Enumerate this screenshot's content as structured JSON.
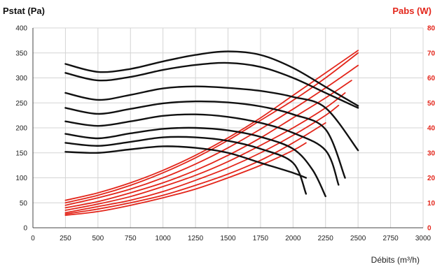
{
  "chart_data": {
    "type": "line",
    "title_left": "Pstat (Pa)",
    "title_right": "Pabs (W)",
    "xlabel": "Débits (m³/h)",
    "xlim": [
      0,
      3000
    ],
    "ylim_left": [
      0,
      400
    ],
    "ylim_right": [
      0,
      80
    ],
    "x_ticks": [
      "0",
      "250",
      "500",
      "750",
      "1000",
      "1250",
      "1500",
      "1750",
      "2000",
      "2250",
      "2500",
      "2750",
      "3000"
    ],
    "y_left_ticks": [
      "0",
      "50",
      "100",
      "150",
      "200",
      "250",
      "300",
      "350",
      "400"
    ],
    "y_right_ticks": [
      "0",
      "10",
      "20",
      "30",
      "40",
      "50",
      "60",
      "70",
      "80"
    ],
    "grid": true,
    "colors": {
      "pressure": "#111111",
      "power": "#e3261b",
      "grid": "#d4d4d4"
    },
    "pressure_curves": [
      {
        "x": [
          250,
          500,
          750,
          1000,
          1250,
          1500,
          1750,
          2000,
          2250,
          2500
        ],
        "y": [
          328,
          312,
          318,
          333,
          346,
          353,
          346,
          320,
          282,
          244
        ]
      },
      {
        "x": [
          250,
          500,
          750,
          1000,
          1250,
          1500,
          1750,
          2000,
          2250,
          2500
        ],
        "y": [
          310,
          295,
          302,
          316,
          326,
          330,
          322,
          300,
          270,
          240
        ]
      },
      {
        "x": [
          250,
          500,
          750,
          1000,
          1250,
          1500,
          1750,
          2000,
          2250,
          2500
        ],
        "y": [
          270,
          256,
          266,
          279,
          283,
          280,
          274,
          262,
          240,
          155
        ]
      },
      {
        "x": [
          250,
          500,
          750,
          1000,
          1250,
          1500,
          1750,
          2000,
          2250,
          2400
        ],
        "y": [
          240,
          228,
          238,
          249,
          253,
          251,
          243,
          227,
          197,
          100
        ]
      },
      {
        "x": [
          250,
          500,
          750,
          1000,
          1250,
          1500,
          1750,
          2000,
          2250,
          2350
        ],
        "y": [
          213,
          204,
          213,
          224,
          227,
          222,
          210,
          190,
          155,
          86
        ]
      },
      {
        "x": [
          250,
          500,
          750,
          1000,
          1250,
          1500,
          1750,
          2000,
          2150,
          2250
        ],
        "y": [
          188,
          179,
          189,
          198,
          200,
          195,
          182,
          158,
          116,
          63
        ]
      },
      {
        "x": [
          250,
          500,
          750,
          1000,
          1250,
          1500,
          1750,
          2000,
          2100
        ],
        "y": [
          170,
          164,
          172,
          181,
          181,
          174,
          158,
          130,
          68
        ]
      },
      {
        "x": [
          250,
          500,
          750,
          1000,
          1250,
          1500,
          1750,
          2000,
          2100
        ],
        "y": [
          152,
          150,
          157,
          163,
          160,
          150,
          130,
          110,
          100
        ]
      }
    ],
    "power_curves": [
      {
        "x": [
          250,
          500,
          750,
          1000,
          1250,
          1500,
          1750,
          2000,
          2250,
          2500
        ],
        "y": [
          11,
          14,
          18,
          23,
          29,
          36,
          44,
          53,
          62,
          71
        ]
      },
      {
        "x": [
          250,
          500,
          750,
          1000,
          1250,
          1500,
          1750,
          2000,
          2250,
          2500
        ],
        "y": [
          10,
          13,
          17,
          22,
          28,
          35,
          43,
          51,
          60,
          70
        ]
      },
      {
        "x": [
          250,
          500,
          750,
          1000,
          1250,
          1500,
          1750,
          2000,
          2250,
          2500
        ],
        "y": [
          9,
          12,
          15.5,
          20,
          25.5,
          32,
          39.5,
          47.5,
          56,
          65
        ]
      },
      {
        "x": [
          250,
          500,
          750,
          1000,
          1250,
          1500,
          1750,
          2000,
          2250,
          2450
        ],
        "y": [
          8,
          10.5,
          14,
          18,
          23,
          29,
          36,
          44,
          52,
          59
        ]
      },
      {
        "x": [
          250,
          500,
          750,
          1000,
          1250,
          1500,
          1750,
          2000,
          2250,
          2400
        ],
        "y": [
          7,
          9.5,
          12.5,
          16.5,
          21,
          26.5,
          33,
          40,
          48,
          54
        ]
      },
      {
        "x": [
          250,
          500,
          750,
          1000,
          1250,
          1500,
          1750,
          2000,
          2250,
          2350
        ],
        "y": [
          6,
          8.5,
          11,
          14.5,
          19,
          24,
          30,
          37,
          45,
          49
        ]
      },
      {
        "x": [
          250,
          500,
          750,
          1000,
          1250,
          1500,
          1750,
          2000,
          2250
        ],
        "y": [
          5.5,
          7.5,
          10,
          13,
          17,
          21.5,
          27,
          34,
          42
        ]
      },
      {
        "x": [
          250,
          500,
          750,
          1000,
          1250,
          1500,
          1750,
          2000,
          2100
        ],
        "y": [
          5,
          6.5,
          9,
          12,
          15.5,
          20,
          25,
          31,
          34
        ]
      }
    ]
  }
}
